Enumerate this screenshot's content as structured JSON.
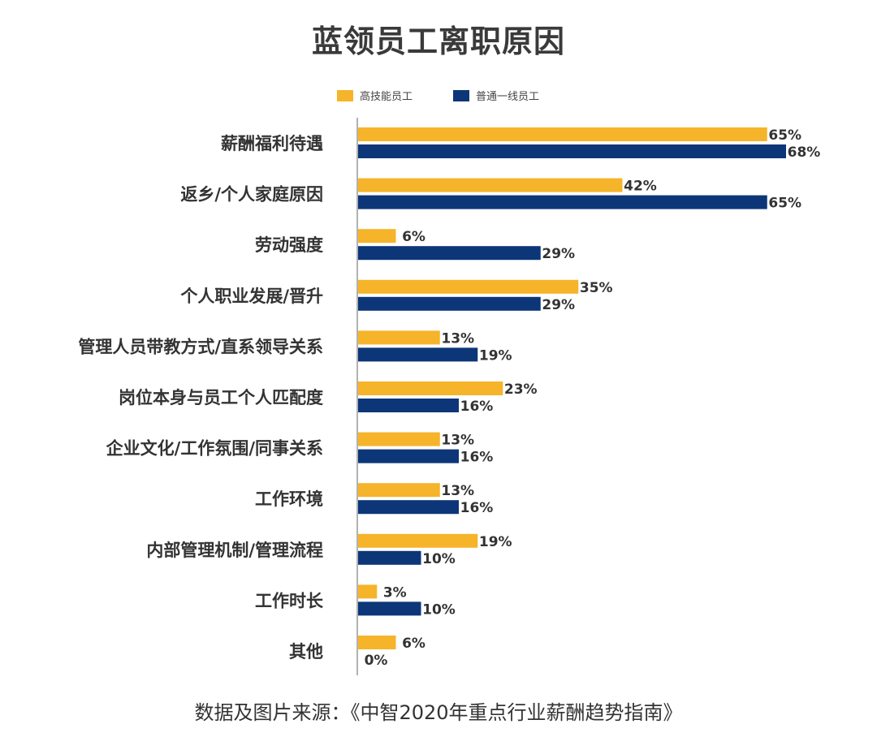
{
  "title": "蓝领员工离职原因",
  "footer": "数据及图片来源：《中智2020年重点行业薪酬趋势指南》",
  "colors": {
    "high_skill": "#F6B42A",
    "frontline": "#0C3678",
    "axis": "#999999",
    "label": "#333333"
  },
  "chart_data": {
    "type": "bar",
    "orientation": "horizontal",
    "title": "蓝领员工离职原因",
    "xlabel": "",
    "ylabel": "",
    "value_unit": "%",
    "xlim": [
      0,
      75
    ],
    "grid": false,
    "legend_position": "top",
    "categories": [
      "薪酬福利待遇",
      "返乡/个人家庭原因",
      "劳动强度",
      "个人职业发展/晋升",
      "管理人员带教方式/直系领导关系",
      "岗位本身与员工个人匹配度",
      "企业文化/工作氛围/同事关系",
      "工作环境",
      "内部管理机制/管理流程",
      "工作时长",
      "其他"
    ],
    "series": [
      {
        "name": "高技能员工",
        "color": "#F6B42A",
        "values": [
          65,
          42,
          6,
          35,
          13,
          23,
          13,
          13,
          19,
          3,
          6
        ]
      },
      {
        "name": "普通一线员工",
        "color": "#0C3678",
        "values": [
          68,
          65,
          29,
          29,
          19,
          16,
          16,
          16,
          10,
          10,
          0
        ]
      }
    ]
  }
}
